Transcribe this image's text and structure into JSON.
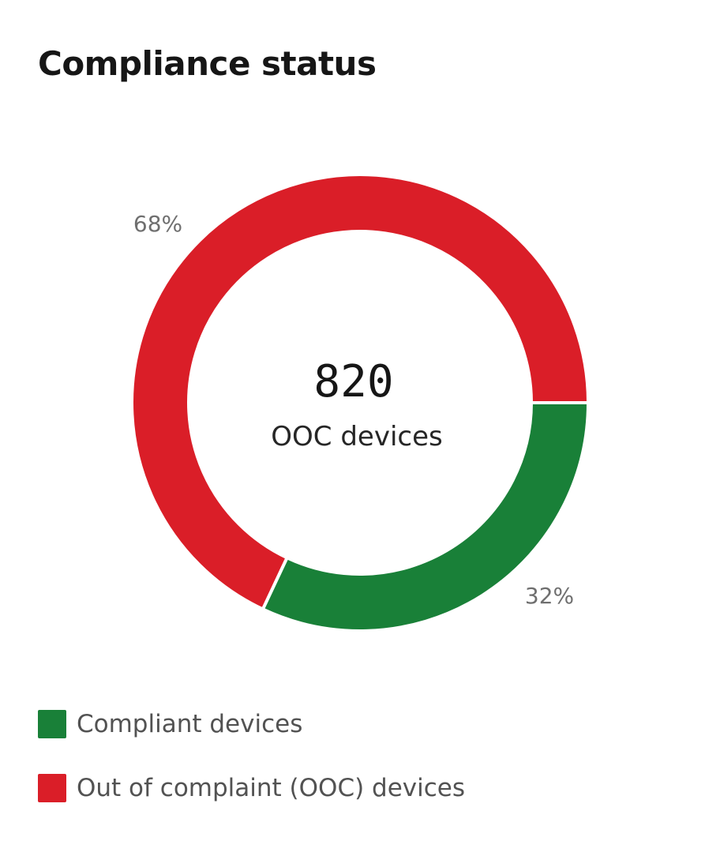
{
  "chart_data": {
    "type": "pie",
    "variant": "donut",
    "title": "Compliance status",
    "center": {
      "value": "820",
      "label": "OOC devices"
    },
    "series": [
      {
        "name": "Out of complaint (OOC) devices",
        "value": 68,
        "label": "68%",
        "color": "#da1e28"
      },
      {
        "name": "Compliant devices",
        "value": 32,
        "label": "32%",
        "color": "#198038"
      }
    ],
    "legend": {
      "position": "bottom-left",
      "items": [
        {
          "label": "Compliant devices",
          "color": "#198038"
        },
        {
          "label": "Out of complaint (OOC) devices",
          "color": "#da1e28"
        }
      ]
    }
  }
}
